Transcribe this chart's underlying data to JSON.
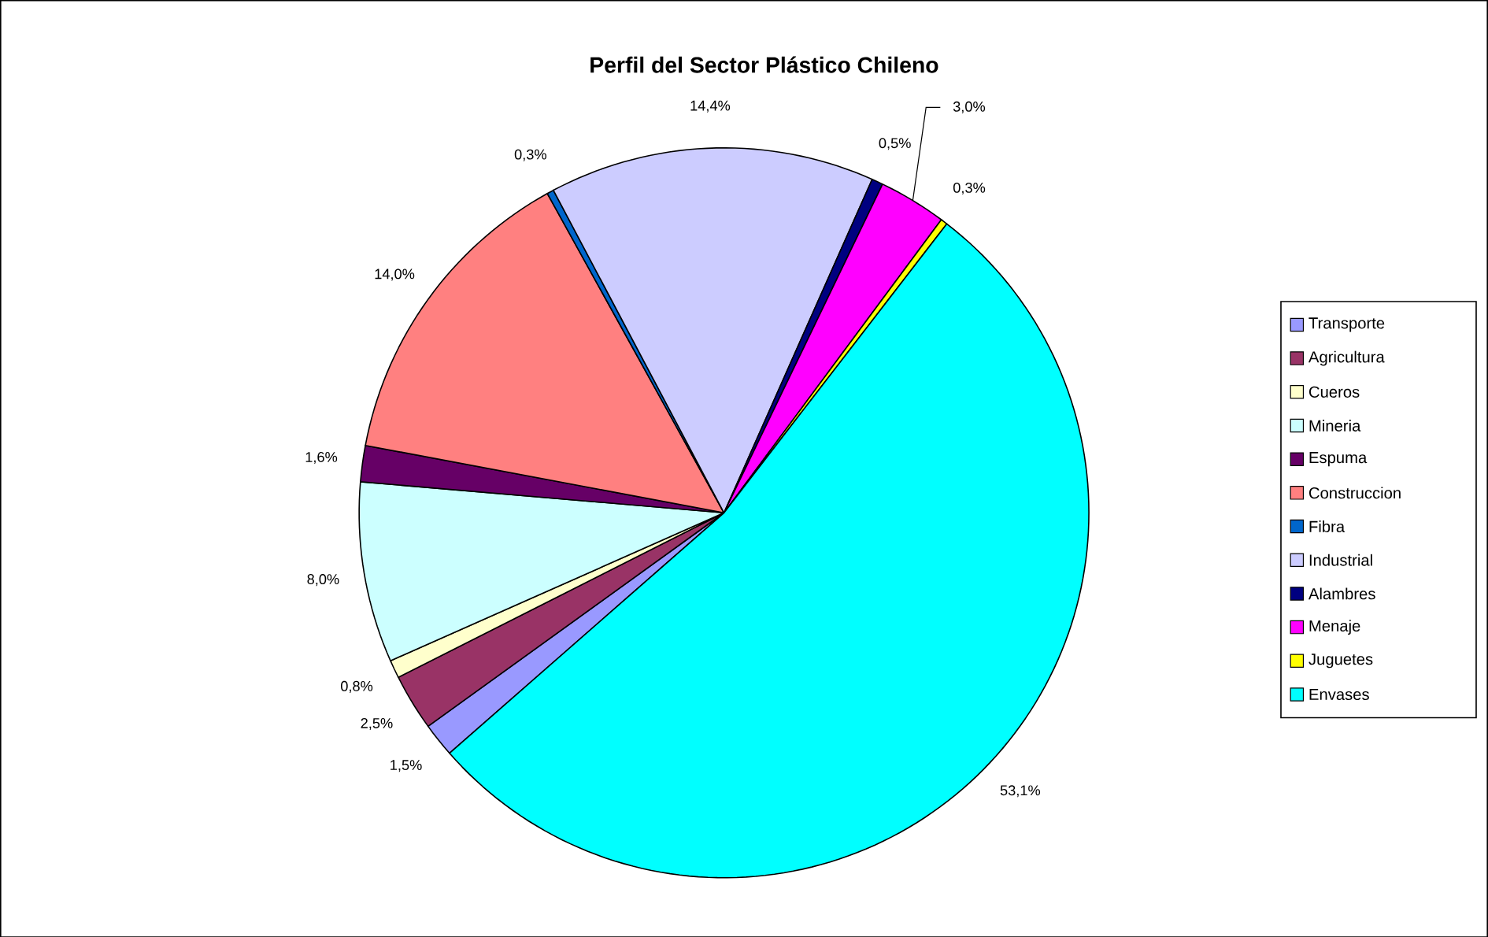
{
  "chart_data": {
    "type": "pie",
    "title": "Perfil del Sector Plástico Chileno",
    "categories": [
      "Transporte",
      "Agricultura",
      "Cueros",
      "Mineria",
      "Espuma",
      "Construccion",
      "Fibra",
      "Industrial",
      "Alambres",
      "Menaje",
      "Juguetes",
      "Envases"
    ],
    "values": [
      1.5,
      2.5,
      0.8,
      8.0,
      1.6,
      14.0,
      0.3,
      14.4,
      0.5,
      3.0,
      0.3,
      53.1
    ],
    "colors": [
      "#9999ff",
      "#993366",
      "#ffffcc",
      "#ccffff",
      "#660066",
      "#ff8080",
      "#0066cc",
      "#ccccff",
      "#000080",
      "#ff00ff",
      "#ffff00",
      "#00ffff"
    ],
    "value_labels": [
      "1,5%",
      "2,5%",
      "0,8%",
      "8,0%",
      "1,6%",
      "14,0%",
      "0,3%",
      "14,4%",
      "0,5%",
      "3,0%",
      "0,3%",
      "53,1%"
    ],
    "legend": "right"
  }
}
